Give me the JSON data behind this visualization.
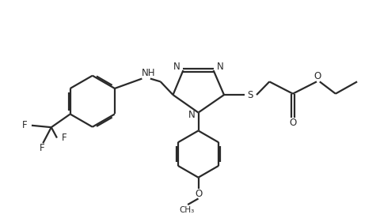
{
  "bg_color": "#ffffff",
  "line_color": "#2a2a2a",
  "line_width": 1.6,
  "figsize": [
    4.8,
    2.76
  ],
  "dpi": 100,
  "xlim": [
    0,
    10
  ],
  "ylim": [
    0,
    5.75
  ]
}
